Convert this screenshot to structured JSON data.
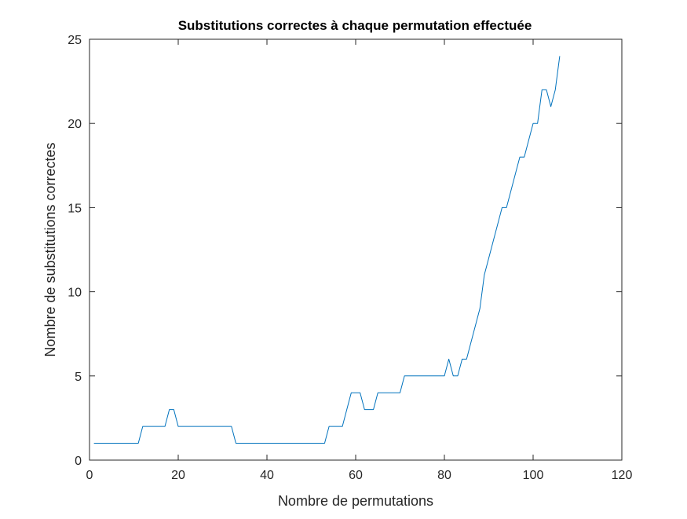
{
  "chart_data": {
    "type": "line",
    "title": "Substitutions correctes à chaque permutation effectuée",
    "xlabel": "Nombre de permutations",
    "ylabel": "Nombre de substitutions correctes",
    "xlim": [
      0,
      120
    ],
    "ylim": [
      0,
      25
    ],
    "xticks": [
      0,
      20,
      40,
      60,
      80,
      100,
      120
    ],
    "yticks": [
      0,
      5,
      10,
      15,
      20,
      25
    ],
    "xtick_labels": [
      "0",
      "20",
      "40",
      "60",
      "80",
      "100",
      "120"
    ],
    "ytick_labels": [
      "0",
      "5",
      "10",
      "15",
      "20",
      "25"
    ],
    "grid": false,
    "color": "#0072BD",
    "series": [
      {
        "x": [
          1,
          2,
          3,
          4,
          5,
          6,
          7,
          8,
          9,
          10,
          11,
          12,
          13,
          14,
          15,
          16,
          17,
          18,
          19,
          20,
          21,
          22,
          23,
          24,
          25,
          26,
          27,
          28,
          29,
          30,
          31,
          32,
          33,
          34,
          35,
          36,
          37,
          38,
          39,
          40,
          41,
          42,
          43,
          44,
          45,
          46,
          47,
          48,
          49,
          50,
          51,
          52,
          53,
          54,
          55,
          56,
          57,
          58,
          59,
          60,
          61,
          62,
          63,
          64,
          65,
          66,
          67,
          68,
          69,
          70,
          71,
          72,
          73,
          74,
          75,
          76,
          77,
          78,
          79,
          80,
          81,
          82,
          83,
          84,
          85,
          86,
          87,
          88,
          89,
          90,
          91,
          92,
          93,
          94,
          95,
          96,
          97,
          98,
          99,
          100,
          101,
          102,
          103,
          104,
          105,
          106
        ],
        "values": [
          1,
          1,
          1,
          1,
          1,
          1,
          1,
          1,
          1,
          1,
          1,
          2,
          2,
          2,
          2,
          2,
          2,
          3,
          3,
          2,
          2,
          2,
          2,
          2,
          2,
          2,
          2,
          2,
          2,
          2,
          2,
          2,
          1,
          1,
          1,
          1,
          1,
          1,
          1,
          1,
          1,
          1,
          1,
          1,
          1,
          1,
          1,
          1,
          1,
          1,
          1,
          1,
          1,
          2,
          2,
          2,
          2,
          3,
          4,
          4,
          4,
          3,
          3,
          3,
          4,
          4,
          4,
          4,
          4,
          4,
          5,
          5,
          5,
          5,
          5,
          5,
          5,
          5,
          5,
          5,
          6,
          5,
          5,
          6,
          6,
          7,
          8,
          9,
          11,
          12,
          13,
          14,
          15,
          15,
          16,
          17,
          18,
          18,
          19,
          20,
          20,
          22,
          22,
          21,
          22,
          24
        ]
      }
    ]
  }
}
